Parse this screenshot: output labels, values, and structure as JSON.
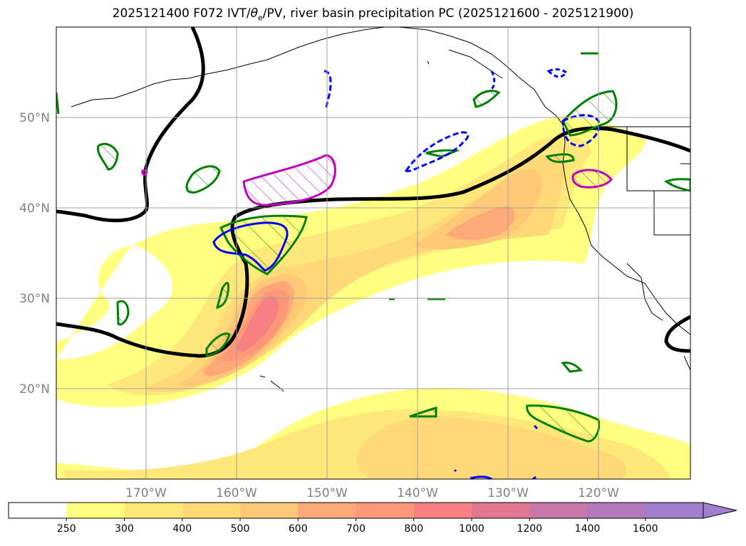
{
  "title": {
    "prefix": "2025121400 F072 IVT/",
    "theta": "θ",
    "theta_sub": "e",
    "suffix": "/PV, river basin precipitation PC (2025121600 - 2025121900)"
  },
  "map": {
    "lat_labels": [
      "50°N",
      "40°N",
      "30°N",
      "20°N"
    ],
    "lon_labels": [
      "170°W",
      "160°W",
      "150°W",
      "140°W",
      "130°W",
      "120°W"
    ],
    "grid": true,
    "contour_colors": {
      "theta_e": "#000000",
      "precip_green": "#008000",
      "precip_blue_dashed": "#0000ff",
      "precip_magenta": "#c000c0"
    }
  },
  "colorbar": {
    "ticks": [
      "250",
      "300",
      "400",
      "500",
      "600",
      "700",
      "800",
      "1000",
      "1200",
      "1400",
      "1600"
    ],
    "colors": [
      "#ffffff",
      "#ffff80",
      "#ffe87a",
      "#ffd878",
      "#ffc876",
      "#ffa878",
      "#ff9878",
      "#f88080",
      "#e07890",
      "#c878a8",
      "#b478bc",
      "#a080cc"
    ],
    "extend": "max"
  }
}
